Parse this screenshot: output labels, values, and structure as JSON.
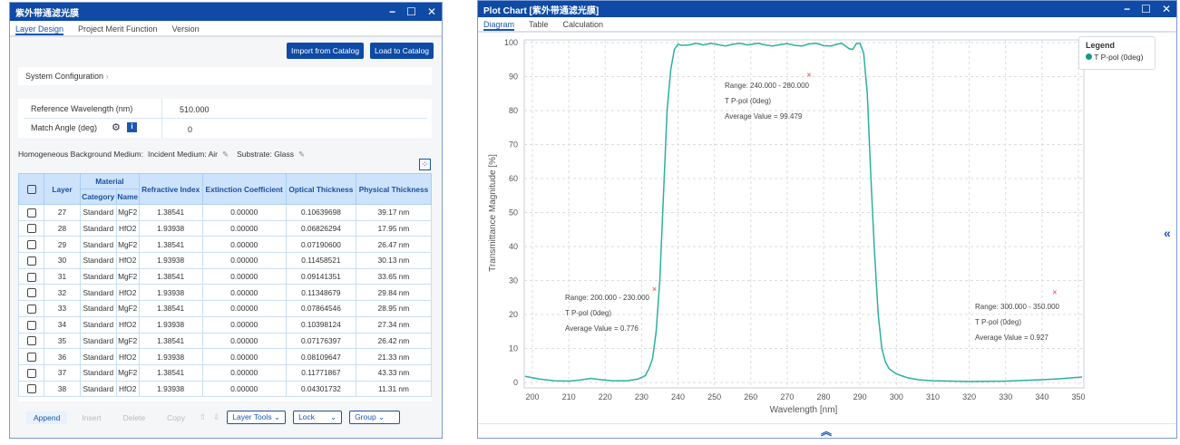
{
  "left": {
    "title": "紫外带通滤光膜",
    "tabs": [
      "Layer Design",
      "Project Merit Function",
      "Version"
    ],
    "import_btn": "Import from Catalog",
    "load_btn": "Load to Catalog",
    "sys_config": "System Configuration",
    "ref_label": "Reference Wavelength (nm)",
    "ref_value": "510.000",
    "angle_label": "Match Angle (deg)",
    "angle_value": "0",
    "medium_label": "Homogeneous Background Medium:",
    "incident": "Incident Medium: Air",
    "substrate": "Substrate: Glass",
    "headers": {
      "layer": "Layer",
      "material": "Material",
      "category": "Category",
      "name": "Name",
      "ri": "Refractive Index",
      "ec": "Extinction Coefficient",
      "ot": "Optical Thickness",
      "pt": "Physical Thickness"
    },
    "rows": [
      [
        "27",
        "Standard",
        "MgF2",
        "1.38541",
        "0.00000",
        "0.10639698",
        "39.17 nm"
      ],
      [
        "28",
        "Standard",
        "HfO2",
        "1.93938",
        "0.00000",
        "0.06826294",
        "17.95 nm"
      ],
      [
        "29",
        "Standard",
        "MgF2",
        "1.38541",
        "0.00000",
        "0.07190600",
        "26.47 nm"
      ],
      [
        "30",
        "Standard",
        "HfO2",
        "1.93938",
        "0.00000",
        "0.11458521",
        "30.13 nm"
      ],
      [
        "31",
        "Standard",
        "MgF2",
        "1.38541",
        "0.00000",
        "0.09141351",
        "33.65 nm"
      ],
      [
        "32",
        "Standard",
        "HfO2",
        "1.93938",
        "0.00000",
        "0.11348679",
        "29.84 nm"
      ],
      [
        "33",
        "Standard",
        "MgF2",
        "1.38541",
        "0.00000",
        "0.07864546",
        "28.95 nm"
      ],
      [
        "34",
        "Standard",
        "HfO2",
        "1.93938",
        "0.00000",
        "0.10398124",
        "27.34 nm"
      ],
      [
        "35",
        "Standard",
        "MgF2",
        "1.38541",
        "0.00000",
        "0.07176397",
        "26.42 nm"
      ],
      [
        "36",
        "Standard",
        "HfO2",
        "1.93938",
        "0.00000",
        "0.08109647",
        "21.33 nm"
      ],
      [
        "37",
        "Standard",
        "MgF2",
        "1.38541",
        "0.00000",
        "0.11771867",
        "43.33 nm"
      ],
      [
        "38",
        "Standard",
        "HfO2",
        "1.93938",
        "0.00000",
        "0.04301732",
        "11.31 nm"
      ]
    ],
    "toolbar": {
      "append": "Append",
      "insert": "Insert",
      "delete": "Delete",
      "copy": "Copy",
      "layer_tools": "Layer Tools",
      "lock": "Lock",
      "group": "Group"
    }
  },
  "right": {
    "title": "Plot Chart [紫外带通滤光膜]",
    "tabs": [
      "Diagram",
      "Table",
      "Calculation"
    ],
    "legend_title": "Legend"
  },
  "chart_data": {
    "type": "line",
    "xlabel": "Wavelength [nm]",
    "ylabel": "Transmittance Magnitude [%]",
    "xlim": [
      198,
      351
    ],
    "ylim": [
      -2,
      101
    ],
    "xticks": [
      200,
      210,
      220,
      230,
      240,
      250,
      260,
      270,
      280,
      290,
      300,
      310,
      320,
      330,
      340,
      350
    ],
    "yticks": [
      0,
      10,
      20,
      30,
      40,
      50,
      60,
      70,
      80,
      90,
      100
    ],
    "grid": true,
    "legend_position": "top-right",
    "series": [
      {
        "name": "T P-pol (0deg)",
        "color": "#2bb0a0",
        "x": [
          198,
          202,
          206,
          210,
          213,
          216,
          219,
          222,
          226,
          229,
          231,
          232,
          233,
          234,
          235,
          236,
          237,
          238,
          239,
          240,
          241,
          243,
          245,
          247,
          249,
          251,
          253,
          255,
          257,
          259,
          262,
          264,
          266,
          268,
          270,
          272,
          274,
          276,
          278,
          280,
          282,
          284,
          285,
          287,
          288,
          289,
          290,
          291,
          292,
          293,
          294,
          295,
          296,
          297,
          298,
          300,
          303,
          306,
          310,
          320,
          330,
          340,
          345,
          351
        ],
        "y": [
          1.8,
          1.0,
          0.5,
          0.4,
          0.7,
          1.2,
          0.8,
          0.5,
          0.5,
          1.0,
          2,
          4,
          7,
          15,
          30,
          55,
          80,
          92,
          98,
          99.5,
          99.2,
          99.3,
          99.8,
          99.3,
          99.8,
          99.4,
          99.0,
          99.5,
          99.8,
          99.3,
          99.8,
          99.3,
          99.0,
          99.4,
          99.7,
          99.2,
          99.0,
          99.6,
          99.8,
          99.1,
          99.0,
          99.6,
          99.8,
          98.2,
          98.0,
          99.7,
          99.8,
          97,
          85,
          60,
          38,
          20,
          10,
          6,
          4,
          2.5,
          1.4,
          0.8,
          0.5,
          0.3,
          0.4,
          0.8,
          1.1,
          1.6
        ]
      }
    ],
    "annotations": [
      {
        "marker": [
          276,
          90.5
        ],
        "lines": [
          "Range: 240.000 - 280.000",
          "T P-pol (0deg)",
          "Average Value = 99.479"
        ]
      },
      {
        "marker": [
          233.5,
          27.5
        ],
        "lines": [
          "Range: 200.000 - 230.000",
          "T P-pol (0deg)",
          "Average Value = 0.776"
        ]
      },
      {
        "marker": [
          343.5,
          26.5
        ],
        "lines": [
          "Range: 300.000 - 350.000",
          "T P-pol (0deg)",
          "Average Value = 0.927"
        ]
      }
    ]
  }
}
